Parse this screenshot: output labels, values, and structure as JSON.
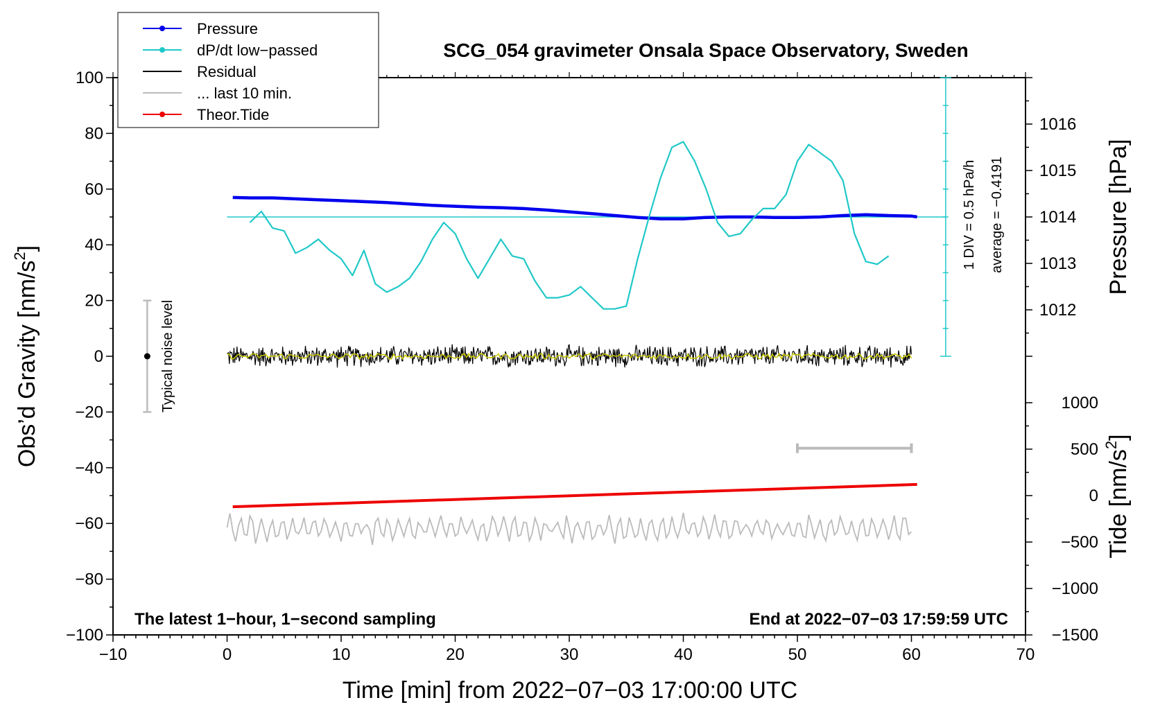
{
  "chart_data": {
    "type": "line",
    "title": "SCG_054 gravimeter Onsala Space Observatory, Sweden",
    "xlabel": "Time [min] from 2022−07−03 17:00:00 UTC",
    "ylabel_left": "Obs’d Gravity [nm/s",
    "ylabel_left_sup": "2",
    "ylabel_left_end": "]",
    "ylabel_pressure": "Pressure [hPa]",
    "ylabel_tide": "Tide [nm/s",
    "ylabel_tide_sup": "2",
    "ylabel_tide_end": "]",
    "xlim": [
      -10,
      70
    ],
    "ylim": [
      -100,
      100
    ],
    "pressure_lim": [
      1011,
      1017
    ],
    "tide_lim": [
      -1500,
      1500
    ],
    "x_ticks": [
      -10,
      0,
      10,
      20,
      30,
      40,
      50,
      60,
      70
    ],
    "x_tick_labels": [
      "−10",
      "0",
      "10",
      "20",
      "30",
      "40",
      "50",
      "60",
      "70"
    ],
    "y_ticks": [
      -100,
      -80,
      -60,
      -40,
      -20,
      0,
      20,
      40,
      60,
      80,
      100
    ],
    "y_tick_labels": [
      "−100",
      "−80",
      "−60",
      "−40",
      "−20",
      "0",
      "20",
      "40",
      "60",
      "80",
      "100"
    ],
    "pressure_ticks": [
      1012,
      1013,
      1014,
      1015,
      1016
    ],
    "pressure_tick_labels": [
      "1012",
      "1013",
      "1014",
      "1015",
      "1016"
    ],
    "tide_ticks": [
      -1500,
      -1000,
      -500,
      0,
      500,
      1000
    ],
    "tide_tick_labels": [
      "−1500",
      "−1000",
      "−500",
      "0",
      "500",
      "1000"
    ],
    "legend": [
      {
        "label": "Pressure",
        "color": "#0000ee",
        "marker": true
      },
      {
        "label": "dP/dt low−passed",
        "color": "#20c8c8",
        "marker": true
      },
      {
        "label": "Residual",
        "color": "#000000",
        "marker": false
      },
      {
        "label": "... last 10 min.",
        "color": "#bbbbbb",
        "marker": false
      },
      {
        "label": "Theor.Tide",
        "color": "#ee0000",
        "marker": true
      }
    ],
    "noise_label": "Typical noise level",
    "noise_bar": {
      "x": -7,
      "center": 0,
      "low": -20,
      "high": 20
    },
    "dpdt_scale_label": "1 DIV = 0.5 hPa/h",
    "dpdt_average_label": "average = −0.4191",
    "dpdt_scale_axis": {
      "x": 63,
      "zero_gravity": 0,
      "top_gravity": 100,
      "divisions": 10
    },
    "note_left": "The latest 1−hour, 1−second sampling",
    "note_right": "End at 2022−07−03 17:59:59 UTC",
    "last10_bar": {
      "x_start": 50,
      "x_end": 60,
      "gravity": -33
    },
    "series": [
      {
        "name": "Pressure",
        "color": "#0000ee",
        "axis": "pressure",
        "x": [
          0.5,
          2,
          4,
          6,
          8,
          10,
          12,
          14,
          16,
          18,
          20,
          22,
          24,
          26,
          28,
          30,
          32,
          34,
          36,
          38,
          40,
          42,
          44,
          46,
          48,
          50,
          52,
          54,
          56,
          58,
          60,
          60.5
        ],
        "values": [
          1014.42,
          1014.41,
          1014.41,
          1014.39,
          1014.37,
          1014.35,
          1014.33,
          1014.31,
          1014.28,
          1014.25,
          1014.23,
          1014.21,
          1014.2,
          1014.18,
          1014.15,
          1014.11,
          1014.07,
          1014.03,
          1013.99,
          1013.96,
          1013.96,
          1013.99,
          1014.0,
          1014.0,
          1013.99,
          1013.99,
          1014.0,
          1014.03,
          1014.05,
          1014.03,
          1014.02,
          1014.0
        ]
      },
      {
        "name": "dP/dt low-passed",
        "color": "#20c8c8",
        "axis": "gravity",
        "x": [
          2,
          3,
          4,
          5,
          6,
          7,
          8,
          9,
          10,
          11,
          12,
          13,
          14,
          15,
          16,
          17,
          18,
          19,
          20,
          21,
          22,
          23,
          24,
          25,
          26,
          27,
          28,
          29,
          30,
          31,
          32,
          33,
          34,
          35,
          36,
          37,
          38,
          39,
          40,
          41,
          42,
          43,
          44,
          45,
          46,
          47,
          48,
          49,
          50,
          51,
          52,
          53,
          54,
          55,
          56,
          57,
          58
        ],
        "values": [
          48,
          52,
          46,
          45,
          37,
          39,
          42,
          38,
          35,
          29,
          38,
          26,
          23,
          25,
          28,
          34,
          42,
          48,
          44,
          35,
          28,
          35,
          42,
          36,
          35,
          27,
          21,
          21,
          22,
          25,
          21,
          17,
          17,
          18,
          35,
          50,
          64,
          75,
          77,
          70,
          60,
          48,
          43,
          44,
          49,
          53,
          53,
          58,
          70,
          76,
          73,
          70,
          63,
          44,
          34,
          33,
          36
        ]
      },
      {
        "name": "Residual",
        "color": "#000000",
        "axis": "gravity",
        "x_range": [
          0,
          60
        ],
        "center": 0,
        "amplitude": 3
      },
      {
        "name": "Residual smoothed",
        "color": "#c8c800",
        "axis": "gravity",
        "x_range": [
          0,
          60
        ],
        "center": 0,
        "amplitude": 1
      },
      {
        "name": "... last 10 min.",
        "color": "#bbbbbb",
        "axis": "gravity",
        "x_range": [
          0,
          60
        ],
        "center": -62,
        "amplitude": 4
      },
      {
        "name": "Theor.Tide",
        "color": "#ee0000",
        "axis": "tide",
        "x": [
          0.5,
          60.5
        ],
        "values": [
          -120,
          120
        ]
      }
    ],
    "dpdt_reference_line": {
      "gravity": 50,
      "x_start": 0,
      "x_end": 63
    }
  }
}
